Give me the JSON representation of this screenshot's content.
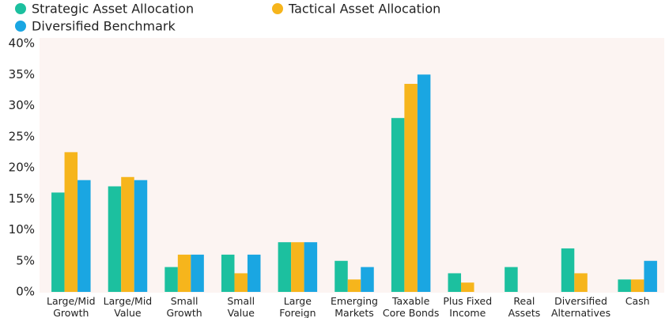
{
  "chart_data": {
    "type": "bar",
    "categories": [
      [
        "Large/Mid",
        "Growth"
      ],
      [
        "Large/Mid",
        "Value"
      ],
      [
        "Small",
        "Growth"
      ],
      [
        "Small",
        "Value"
      ],
      [
        "Large",
        "Foreign"
      ],
      [
        "Emerging",
        "Markets"
      ],
      [
        "Taxable",
        "Core Bonds"
      ],
      [
        "Plus Fixed",
        "Income"
      ],
      [
        "Real",
        "Assets"
      ],
      [
        "Diversified",
        "Alternatives"
      ],
      [
        "Cash"
      ]
    ],
    "series": [
      {
        "name": "Strategic Asset Allocation",
        "color": "#1cc09f",
        "values": [
          16,
          17,
          4,
          6,
          8,
          5,
          28,
          3,
          4,
          7,
          2
        ]
      },
      {
        "name": "Tactical Asset Allocation",
        "color": "#f6b51c",
        "values": [
          22.5,
          18.5,
          6,
          3,
          8,
          2,
          33.5,
          1.5,
          0,
          3,
          2
        ]
      },
      {
        "name": "Diversified Benchmark",
        "color": "#1aa6e2",
        "values": [
          18,
          18,
          6,
          6,
          8,
          4,
          35,
          0,
          0,
          0,
          5
        ]
      }
    ],
    "ylim": [
      0,
      40
    ],
    "yticks": [
      {
        "value": 0,
        "label": "0%"
      },
      {
        "value": 5,
        "label": "5%"
      },
      {
        "value": 10,
        "label": "10%"
      },
      {
        "value": 15,
        "label": "15%"
      },
      {
        "value": 20,
        "label": "20%"
      },
      {
        "value": 25,
        "label": "25%"
      },
      {
        "value": 30,
        "label": "30%"
      },
      {
        "value": 35,
        "label": "35%"
      },
      {
        "value": 40,
        "label": "40%"
      }
    ],
    "grid": false
  }
}
